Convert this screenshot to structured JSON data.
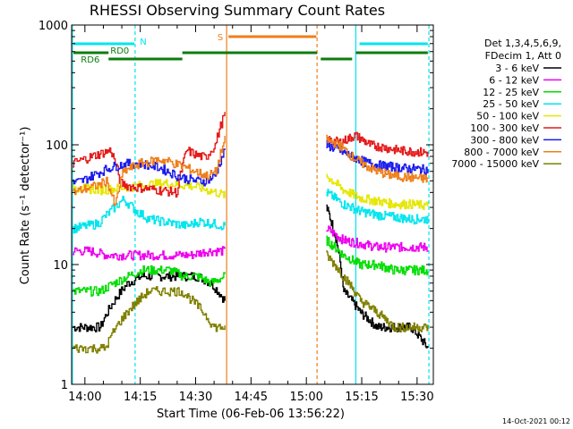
{
  "chart_data": {
    "type": "line",
    "title": "RHESSI Observing Summary Count Rates",
    "xlabel": "Start Time (06-Feb-06 13:56:22)",
    "ylabel": "Count Rate (s⁻¹ detector⁻¹)",
    "ylim": [
      1,
      1000
    ],
    "yscale": "log",
    "x_range_minutes_after_1356": [
      0,
      98
    ],
    "x_ticks": [
      {
        "label": "14:00",
        "min": 3.6
      },
      {
        "label": "14:15",
        "min": 18.6
      },
      {
        "label": "14:30",
        "min": 33.6
      },
      {
        "label": "14:45",
        "min": 48.6
      },
      {
        "label": "15:00",
        "min": 63.6
      },
      {
        "label": "15:15",
        "min": 78.6
      },
      {
        "label": "15:30",
        "min": 93.6
      }
    ],
    "y_ticks": [
      {
        "label": "1",
        "value": 1
      },
      {
        "label": "10",
        "value": 10
      },
      {
        "label": "100",
        "value": 100
      },
      {
        "label": "1000",
        "value": 1000
      }
    ],
    "legend_header": [
      "Det 1,3,4,5,6,9,",
      "FDecim 1, Att 0"
    ],
    "legend_placement": "right",
    "timestamp": "14-Oct-2021 00:12",
    "flag_labels": [
      {
        "text": "N",
        "color": "#00e5ee"
      },
      {
        "text": "RD0",
        "color": "#0d7d0d"
      },
      {
        "text": "RD6",
        "color": "#0d7d0d"
      },
      {
        "text": "S",
        "color": "#ee7f1a"
      }
    ],
    "series": [
      {
        "name": "3 - 6 keV",
        "color": "#000000",
        "seg1": [
          3,
          3,
          3,
          5,
          7,
          8,
          8,
          8,
          8,
          8,
          7,
          5
        ],
        "seg2": [
          30,
          6,
          4,
          3,
          3,
          3,
          2
        ]
      },
      {
        "name": "6 - 12 keV",
        "color": "#ee00ee",
        "seg1": [
          13,
          13,
          12,
          12,
          12,
          12,
          12,
          12,
          13,
          13
        ],
        "seg2": [
          20,
          16,
          15,
          14,
          14,
          14,
          14
        ]
      },
      {
        "name": "12 - 25 keV",
        "color": "#00dd00",
        "seg1": [
          6,
          6,
          6,
          7,
          8,
          9,
          9,
          9,
          8,
          8,
          7,
          8
        ],
        "seg2": [
          16,
          12,
          10,
          10,
          9,
          9,
          9
        ]
      },
      {
        "name": "25 - 50 keV",
        "color": "#00e5ee",
        "seg1": [
          20,
          21,
          22,
          28,
          35,
          28,
          24,
          23,
          22,
          21,
          23,
          22,
          21
        ],
        "seg2": [
          40,
          32,
          28,
          26,
          25,
          24,
          24
        ]
      },
      {
        "name": "50 - 100 keV",
        "color": "#e6e600",
        "seg1": [
          44,
          42,
          45,
          48,
          45,
          38
        ],
        "seg2": [
          55,
          42,
          36,
          34,
          32,
          32,
          31
        ]
      },
      {
        "name": "100 - 300 keV",
        "color": "#e41a1a",
        "seg1": [
          70,
          75,
          80,
          85,
          90,
          48,
          45,
          44,
          43,
          42,
          41,
          40,
          90,
          82,
          78,
          100,
          180
        ],
        "seg2": [
          110,
          105,
          120,
          100,
          95,
          90,
          88,
          86
        ]
      },
      {
        "name": "300 - 800 keV",
        "color": "#1a1aee",
        "seg1": [
          48,
          50,
          55,
          60,
          65,
          68,
          70,
          70,
          68,
          65,
          60,
          55,
          52,
          50,
          50,
          55,
          90
        ],
        "seg2": [
          100,
          90,
          80,
          72,
          68,
          66,
          64,
          63,
          62
        ]
      },
      {
        "name": "800 - 7000 keV",
        "color": "#ee7f1a",
        "seg1": [
          40,
          42,
          44,
          46,
          50,
          30,
          60,
          65,
          70,
          72,
          75,
          74,
          70,
          66,
          62,
          58,
          55,
          60,
          110
        ],
        "seg2": [
          110,
          100,
          80,
          68,
          60,
          56,
          54,
          53,
          52
        ]
      },
      {
        "name": "7000 - 15000 keV",
        "color": "#808000",
        "seg1": [
          2,
          2,
          2,
          2,
          3,
          4,
          5,
          6,
          6,
          6,
          6,
          5,
          4,
          3,
          3
        ],
        "seg2": [
          12,
          8,
          5,
          4,
          3,
          3,
          3
        ]
      }
    ]
  }
}
